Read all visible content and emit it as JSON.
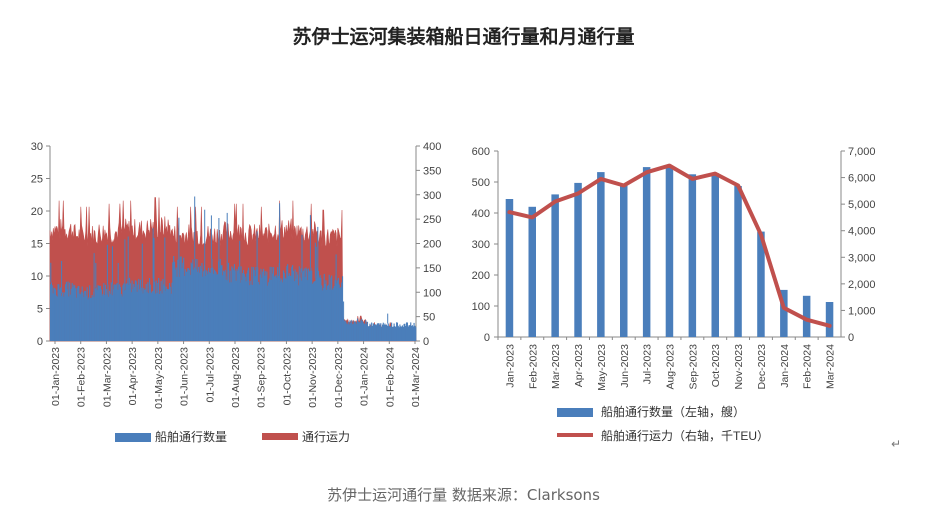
{
  "title": "苏伊士运河集装箱船日通行量和月通行量",
  "caption": "苏伊士运河通行量 数据来源：Clarksons",
  "return_mark": "↵",
  "colors": {
    "blue": "#4a7ebb",
    "red": "#c0504d",
    "axis": "#888888"
  },
  "chart_data": [
    {
      "type": "area",
      "title": "",
      "left_axis": {
        "min": 0,
        "max": 30,
        "ticks": [
          0,
          5,
          10,
          15,
          20,
          25,
          30
        ]
      },
      "right_axis": {
        "min": 0,
        "max": 400,
        "ticks": [
          0,
          50,
          100,
          150,
          200,
          250,
          300,
          350,
          400
        ]
      },
      "x_tick_labels": [
        "01-Jan-2023",
        "01-Feb-2023",
        "01-Mar-2023",
        "01-Apr-2023",
        "01-May-2023",
        "01-Jun-2023",
        "01-Jul-2023",
        "01-Aug-2023",
        "01-Sep-2023",
        "01-Oct-2023",
        "01-Nov-2023",
        "01-Dec-2023",
        "01-Jan-2024",
        "01-Feb-2024",
        "01-Mar-2024"
      ],
      "series": [
        {
          "name": "船舶通行数量",
          "axis": "left",
          "kind": "bars",
          "monthly_avg_values": [
            8,
            7.5,
            8,
            8.5,
            8.5,
            11.5,
            11,
            10.5,
            10,
            10.5,
            10,
            9,
            3,
            2.5,
            2.5
          ]
        },
        {
          "name": "通行运力",
          "axis": "right",
          "kind": "area",
          "monthly_avg_values": [
            225,
            215,
            220,
            225,
            230,
            215,
            215,
            220,
            215,
            225,
            220,
            210,
            40,
            30,
            25
          ]
        }
      ],
      "legend": [
        "船舶通行数量",
        "通行运力"
      ],
      "legend_position": "bottom"
    },
    {
      "type": "bar",
      "title": "",
      "categories": [
        "Jan-2023",
        "Feb-2023",
        "Mar-2023",
        "Apr-2023",
        "May-2023",
        "Jun-2023",
        "Jul-2023",
        "Aug-2023",
        "Sep-2023",
        "Oct-2023",
        "Nov-2023",
        "Dec-2023",
        "Jan-2024",
        "Feb-2024",
        "Mar-2024"
      ],
      "left_axis": {
        "min": 0,
        "max": 600,
        "ticks": [
          "0",
          "100",
          "200",
          "300",
          "400",
          "500",
          "600"
        ]
      },
      "right_axis": {
        "min": 0,
        "max": 7000,
        "ticks": [
          "0",
          "1,000",
          "2,000",
          "3,000",
          "4,000",
          "5,000",
          "6,000",
          "7,000"
        ]
      },
      "series": [
        {
          "name": "船舶通行数量（左轴，艘）",
          "axis": "left",
          "kind": "bar",
          "values": [
            445,
            420,
            460,
            497,
            532,
            495,
            548,
            553,
            525,
            528,
            487,
            340,
            152,
            133,
            113
          ]
        },
        {
          "name": "船舶通行运力（右轴，千TEU）",
          "axis": "right",
          "kind": "line",
          "values": [
            4700,
            4500,
            5100,
            5400,
            5950,
            5700,
            6200,
            6450,
            5950,
            6150,
            5700,
            3850,
            1100,
            650,
            420
          ]
        }
      ],
      "legend": [
        "船舶通行数量（左轴，艘）",
        "船舶通行运力（右轴，千TEU）"
      ],
      "legend_position": "bottom"
    }
  ]
}
